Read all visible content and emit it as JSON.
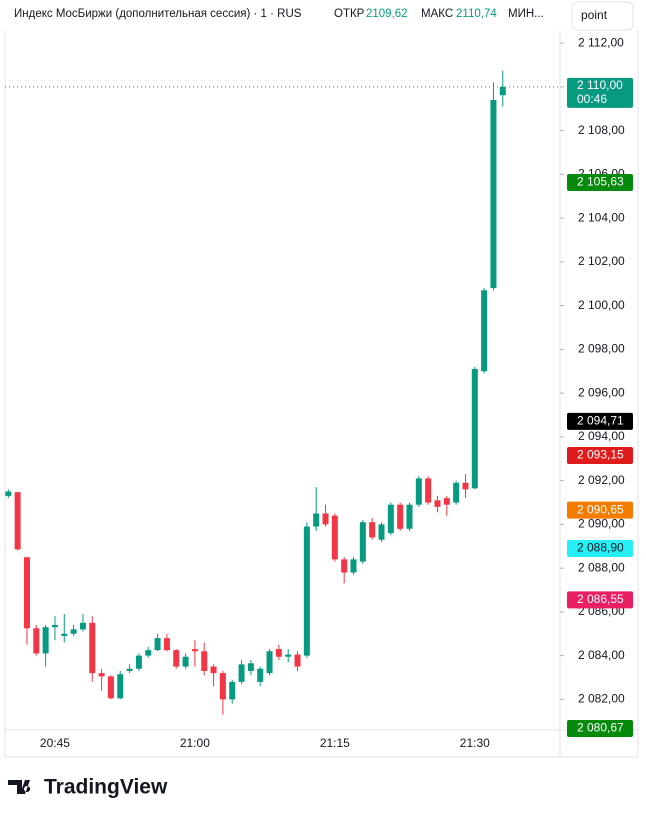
{
  "chart_data": {
    "type": "candlestick",
    "title": "Индекс МосБиржи (дополнительная сессия) · 1 · RUS",
    "open_label": "ОТКР",
    "open_value": "2109,62",
    "high_label": "МАКС",
    "high_value": "2110,74",
    "low_label": "МИН...",
    "button": "point",
    "brand": "TradingView",
    "up_color": "#089981",
    "down_color": "#f23645",
    "categories": [
      null,
      null,
      null,
      null,
      null,
      "20:45",
      null,
      null,
      null,
      null,
      null,
      null,
      null,
      null,
      null,
      null,
      null,
      null,
      null,
      null,
      "21:00",
      null,
      null,
      null,
      null,
      null,
      null,
      null,
      null,
      null,
      null,
      null,
      null,
      null,
      null,
      "21:15",
      null,
      null,
      null,
      null,
      null,
      null,
      null,
      null,
      null,
      null,
      null,
      null,
      null,
      null,
      "21:30",
      null,
      null,
      null
    ],
    "open": [
      2091.3,
      2091.47,
      2088.5,
      2085.25,
      2084.1,
      2085.3,
      2084.9,
      2085.0,
      2085.2,
      2085.5,
      2083.2,
      2083.05,
      2082.05,
      2083.3,
      2083.4,
      2084.0,
      2084.25,
      2084.8,
      2084.25,
      2083.5,
      2084.3,
      2084.2,
      2083.5,
      2083.2,
      2082.0,
      2082.8,
      2083.3,
      2082.8,
      2083.2,
      2084.3,
      2083.95,
      2084.05,
      2084.0,
      2089.9,
      2090.5,
      2090.4,
      2088.4,
      2087.8,
      2088.3,
      2090.1,
      2089.3,
      2089.6,
      2090.9,
      2089.8,
      2090.9,
      2092.1,
      2091.1,
      2091.2,
      2091.0,
      2091.9,
      2091.65,
      2097.0,
      2100.8,
      2109.62
    ],
    "high": [
      2091.6,
      2091.5,
      2088.5,
      2085.4,
      2085.4,
      2085.8,
      2085.9,
      2085.4,
      2085.9,
      2085.8,
      2083.4,
      2083.1,
      2083.3,
      2083.6,
      2084.1,
      2084.4,
      2085.0,
      2085.0,
      2084.3,
      2084.1,
      2084.7,
      2084.6,
      2083.6,
      2083.3,
      2082.9,
      2083.8,
      2083.8,
      2083.5,
      2084.3,
      2084.5,
      2084.3,
      2084.2,
      2090.1,
      2091.7,
      2090.9,
      2090.5,
      2088.5,
      2088.5,
      2090.2,
      2090.3,
      2090.1,
      2091.0,
      2091.0,
      2091.0,
      2092.2,
      2092.2,
      2091.3,
      2091.3,
      2092.0,
      2092.3,
      2097.2,
      2100.8,
      2110.2,
      2110.74
    ],
    "low": [
      2091.2,
      2088.8,
      2084.5,
      2084.0,
      2083.5,
      2084.7,
      2084.6,
      2084.9,
      2085.1,
      2082.8,
      2082.4,
      2082.0,
      2082.0,
      2083.2,
      2083.3,
      2083.9,
      2084.2,
      2084.2,
      2083.4,
      2083.4,
      2083.5,
      2083.1,
      2082.6,
      2081.3,
      2081.8,
      2082.7,
      2083.1,
      2082.6,
      2083.1,
      2083.8,
      2083.7,
      2083.3,
      2083.9,
      2089.7,
      2089.9,
      2088.3,
      2087.3,
      2087.7,
      2088.2,
      2089.3,
      2089.2,
      2089.5,
      2089.7,
      2089.7,
      2090.8,
      2090.9,
      2090.55,
      2090.4,
      2090.9,
      2091.2,
      2091.6,
      2096.9,
      2100.7,
      2109.1
    ],
    "close": [
      2091.5,
      2088.86,
      2085.25,
      2084.1,
      2085.3,
      2085.4,
      2085.0,
      2085.2,
      2085.5,
      2083.2,
      2083.05,
      2082.05,
      2083.15,
      2083.4,
      2084.0,
      2084.25,
      2084.8,
      2084.25,
      2083.5,
      2083.95,
      2084.2,
      2083.3,
      2083.2,
      2082.0,
      2082.8,
      2083.6,
      2083.65,
      2083.4,
      2084.2,
      2083.95,
      2084.05,
      2083.5,
      2089.9,
      2090.5,
      2090.0,
      2088.4,
      2087.8,
      2088.4,
      2090.1,
      2089.4,
      2090.0,
      2090.9,
      2089.8,
      2090.9,
      2092.1,
      2091.0,
      2090.8,
      2090.9,
      2091.9,
      2091.6,
      2097.1,
      2100.7,
      2109.4,
      2110.0
    ],
    "ylim": [
      2080.6,
      2112.6
    ],
    "yticks": [
      {
        "value": 2082,
        "label": "2 082,00"
      },
      {
        "value": 2084,
        "label": "2 084,00"
      },
      {
        "value": 2086,
        "label": "2 086,00"
      },
      {
        "value": 2088,
        "label": "2 088,00"
      },
      {
        "value": 2090,
        "label": "2 090,00"
      },
      {
        "value": 2092,
        "label": "2 092,00"
      },
      {
        "value": 2094,
        "label": "2 094,00"
      },
      {
        "value": 2096,
        "label": "2 096,00"
      },
      {
        "value": 2098,
        "label": "2 098,00"
      },
      {
        "value": 2100,
        "label": "2 100,00"
      },
      {
        "value": 2102,
        "label": "2 102,00"
      },
      {
        "value": 2104,
        "label": "2 104,00"
      },
      {
        "value": 2106,
        "label": "2 106,00"
      },
      {
        "value": 2108,
        "label": "2 108,00"
      },
      {
        "value": 2110,
        "label": "2 110,00"
      },
      {
        "value": 2112,
        "label": "2 112,00"
      }
    ],
    "last_price": {
      "value": 2110.0,
      "label": "2 110,00",
      "countdown": "00:46",
      "color": "#089981"
    },
    "price_badges": [
      {
        "value": 2105.63,
        "label": "2 105,63",
        "color": "#068a0c",
        "text_color": "#ffffff"
      },
      {
        "value": 2094.71,
        "label": "2 094,71",
        "color": "#000000",
        "text_color": "#ffffff"
      },
      {
        "value": 2093.15,
        "label": "2 093,15",
        "color": "#e01b1b",
        "text_color": "#ffffff"
      },
      {
        "value": 2090.65,
        "label": "2 090,65",
        "color": "#f57c00",
        "text_color": "#ffffff"
      },
      {
        "value": 2088.9,
        "label": "2 088,90",
        "color": "#26f0f5",
        "text_color": "#131722"
      },
      {
        "value": 2086.55,
        "label": "2 086,55",
        "color": "#e91e63",
        "text_color": "#ffffff"
      },
      {
        "value": 2080.67,
        "label": "2 080,67",
        "color": "#068a0c",
        "text_color": "#ffffff"
      }
    ]
  }
}
